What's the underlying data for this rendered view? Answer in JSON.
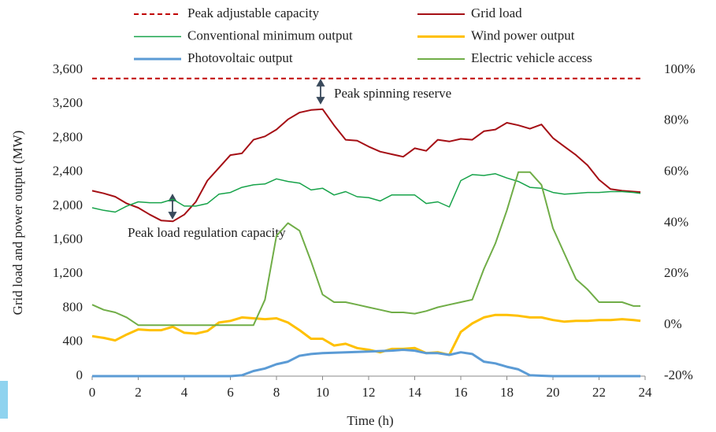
{
  "chart_data": {
    "type": "line",
    "xlabel": "Time (h)",
    "ylabel": "Grid load and power output (MW)",
    "annotations": [
      "Peak spinning reserve",
      "Peak load regulation capacity"
    ],
    "x": [
      0,
      0.5,
      1,
      1.5,
      2,
      2.5,
      3,
      3.5,
      4,
      4.5,
      5,
      5.5,
      6,
      6.5,
      7,
      7.5,
      8,
      8.5,
      9,
      9.5,
      10,
      10.5,
      11,
      11.5,
      12,
      12.5,
      13,
      13.5,
      14,
      14.5,
      15,
      15.5,
      16,
      16.5,
      17,
      17.5,
      18,
      18.5,
      19,
      19.5,
      20,
      20.5,
      21,
      21.5,
      22,
      22.5,
      23,
      23.5,
      23.8
    ],
    "xlim": [
      0,
      24
    ],
    "xticks": [
      0,
      2,
      4,
      6,
      8,
      10,
      12,
      14,
      16,
      18,
      20,
      22,
      24
    ],
    "ylim": [
      0,
      3600
    ],
    "yticks": [
      0,
      400,
      800,
      {
        "value": 1200,
        "label": "1,200"
      },
      {
        "value": 1600,
        "label": "1,600"
      },
      {
        "value": 2000,
        "label": "2,000"
      },
      {
        "value": 2400,
        "label": "2,400"
      },
      {
        "value": 2800,
        "label": "2,800"
      },
      {
        "value": 3200,
        "label": "3,200"
      },
      {
        "value": 3600,
        "label": "3,600"
      }
    ],
    "y2lim": [
      -20,
      100
    ],
    "y2ticks": [
      {
        "value": -20,
        "label": "-20%"
      },
      {
        "value": 0,
        "label": "0%"
      },
      {
        "value": 20,
        "label": "20%"
      },
      {
        "value": 40,
        "label": "40%"
      },
      {
        "value": 60,
        "label": "60%"
      },
      {
        "value": 80,
        "label": "80%"
      },
      {
        "value": 100,
        "label": "100%"
      }
    ],
    "series": [
      {
        "name": "Peak adjustable capacity",
        "color": "#c00000",
        "style": "dashed",
        "width": 2,
        "values": [
          3500,
          3500,
          3500,
          3500,
          3500,
          3500,
          3500,
          3500,
          3500,
          3500,
          3500,
          3500,
          3500,
          3500,
          3500,
          3500,
          3500,
          3500,
          3500,
          3500,
          3500,
          3500,
          3500,
          3500,
          3500,
          3500,
          3500,
          3500,
          3500,
          3500,
          3500,
          3500,
          3500,
          3500,
          3500,
          3500,
          3500,
          3500,
          3500,
          3500,
          3500,
          3500,
          3500,
          3500,
          3500,
          3500,
          3500,
          3500,
          3500
        ]
      },
      {
        "name": "Grid load",
        "color": "#a50f15",
        "style": "solid",
        "width": 2,
        "values": [
          2180,
          2150,
          2110,
          2030,
          1980,
          1900,
          1830,
          1820,
          1900,
          2050,
          2300,
          2450,
          2600,
          2620,
          2780,
          2820,
          2900,
          3020,
          3100,
          3130,
          3140,
          2950,
          2780,
          2770,
          2700,
          2640,
          2610,
          2580,
          2680,
          2650,
          2780,
          2760,
          2790,
          2780,
          2880,
          2900,
          2980,
          2950,
          2910,
          2960,
          2800,
          2700,
          2600,
          2480,
          2310,
          2200,
          2180,
          2170,
          2165
        ]
      },
      {
        "name": "Conventional minimum output",
        "color": "#17a34a",
        "style": "solid",
        "width": 1.5,
        "values": [
          1980,
          1950,
          1930,
          2000,
          2050,
          2040,
          2040,
          2080,
          2000,
          2000,
          2030,
          2140,
          2160,
          2220,
          2250,
          2260,
          2320,
          2290,
          2270,
          2190,
          2210,
          2130,
          2170,
          2110,
          2100,
          2060,
          2130,
          2130,
          2130,
          2030,
          2050,
          1990,
          2300,
          2370,
          2360,
          2380,
          2330,
          2290,
          2220,
          2210,
          2160,
          2140,
          2150,
          2160,
          2160,
          2170,
          2170,
          2160,
          2150
        ]
      },
      {
        "name": "Wind power output",
        "color": "#ffc000",
        "style": "solid",
        "width": 3,
        "values": [
          470,
          450,
          420,
          490,
          550,
          540,
          540,
          580,
          510,
          500,
          530,
          630,
          650,
          690,
          680,
          670,
          680,
          630,
          540,
          440,
          440,
          360,
          380,
          330,
          310,
          280,
          320,
          320,
          330,
          270,
          280,
          250,
          520,
          620,
          690,
          720,
          720,
          710,
          690,
          690,
          660,
          640,
          650,
          650,
          660,
          660,
          670,
          660,
          650
        ]
      },
      {
        "name": "Photovoltaic output",
        "color": "#5b9bd5",
        "style": "solid",
        "width": 3,
        "values": [
          0,
          0,
          0,
          0,
          0,
          0,
          0,
          0,
          0,
          0,
          0,
          0,
          0,
          10,
          60,
          90,
          140,
          170,
          240,
          260,
          270,
          275,
          280,
          285,
          290,
          295,
          300,
          310,
          300,
          270,
          270,
          250,
          280,
          260,
          170,
          150,
          110,
          80,
          10,
          5,
          0,
          0,
          0,
          0,
          0,
          0,
          0,
          0,
          0
        ]
      },
      {
        "name": "Electric vehicle access",
        "color": "#70ad47",
        "style": "solid",
        "width": 2,
        "axis": "y2",
        "values": [
          8,
          6,
          5,
          3,
          0,
          0,
          0,
          0,
          0,
          0,
          0,
          0,
          0,
          0,
          0,
          10,
          35,
          40,
          37,
          25,
          12,
          9,
          9,
          8,
          7,
          6,
          5,
          5,
          4.5,
          5.5,
          7,
          8,
          9,
          10,
          22,
          32,
          45,
          60,
          60,
          55,
          38,
          28,
          18,
          14,
          9,
          9,
          9,
          7.5,
          7.5
        ]
      }
    ]
  }
}
